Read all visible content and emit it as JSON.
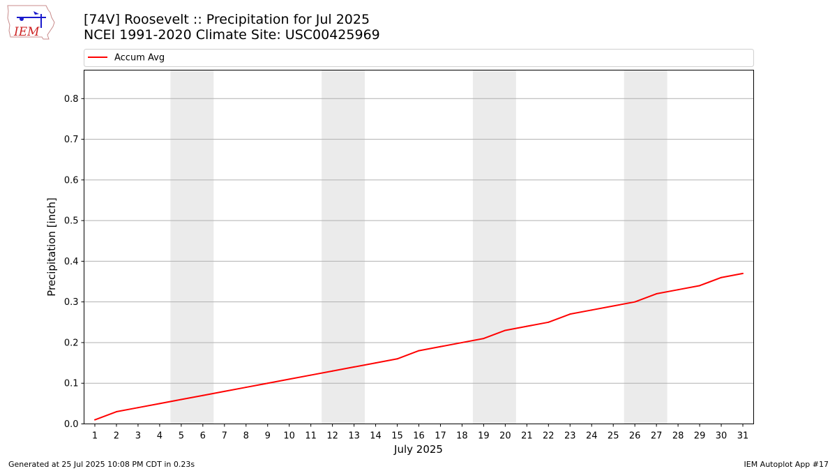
{
  "header": {
    "title": "[74V] Roosevelt :: Precipitation for Jul 2025",
    "subtitle": "NCEI 1991-2020 Climate Site: USC00425969"
  },
  "logo": {
    "text": "IEM",
    "icon": "iem-iowa-logo"
  },
  "footer": {
    "left": "Generated at 25 Jul 2025 10:08 PM CDT in 0.23s",
    "right": "IEM Autoplot App #17"
  },
  "chart_data": {
    "type": "line",
    "title": "[74V] Roosevelt :: Precipitation for Jul 2025",
    "subtitle": "NCEI 1991-2020 Climate Site: USC00425969",
    "xlabel": "July 2025",
    "ylabel": "Precipitation [inch]",
    "x": [
      1,
      2,
      3,
      4,
      5,
      6,
      7,
      8,
      9,
      10,
      11,
      12,
      13,
      14,
      15,
      16,
      17,
      18,
      19,
      20,
      21,
      22,
      23,
      24,
      25,
      26,
      27,
      28,
      29,
      30,
      31
    ],
    "xticks": [
      "1",
      "2",
      "3",
      "4",
      "5",
      "6",
      "7",
      "8",
      "9",
      "10",
      "11",
      "12",
      "13",
      "14",
      "15",
      "16",
      "17",
      "18",
      "19",
      "20",
      "21",
      "22",
      "23",
      "24",
      "25",
      "26",
      "27",
      "28",
      "29",
      "30",
      "31"
    ],
    "xlim": [
      0.5,
      31.5
    ],
    "ylim": [
      0,
      0.87
    ],
    "yticks": [
      "0.0",
      "0.1",
      "0.2",
      "0.3",
      "0.4",
      "0.5",
      "0.6",
      "0.7",
      "0.8"
    ],
    "ytick_values": [
      0,
      0.1,
      0.2,
      0.3,
      0.4,
      0.5,
      0.6,
      0.7,
      0.8
    ],
    "grid": "horizontal",
    "legend_position": "top",
    "weekend_shading": [
      [
        5,
        6
      ],
      [
        12,
        13
      ],
      [
        19,
        20
      ],
      [
        26,
        27
      ]
    ],
    "colors": {
      "line": "#ff0000",
      "weekend": "#ebebeb",
      "grid": "#b0b0b0"
    },
    "series": [
      {
        "name": "Accum Avg",
        "color": "#ff0000",
        "values": [
          0.01,
          0.03,
          0.04,
          0.05,
          0.06,
          0.07,
          0.08,
          0.09,
          0.1,
          0.11,
          0.12,
          0.13,
          0.14,
          0.15,
          0.16,
          0.18,
          0.19,
          0.2,
          0.21,
          0.23,
          0.24,
          0.25,
          0.27,
          0.28,
          0.29,
          0.3,
          0.32,
          0.33,
          0.34,
          0.36,
          0.37
        ]
      }
    ]
  }
}
